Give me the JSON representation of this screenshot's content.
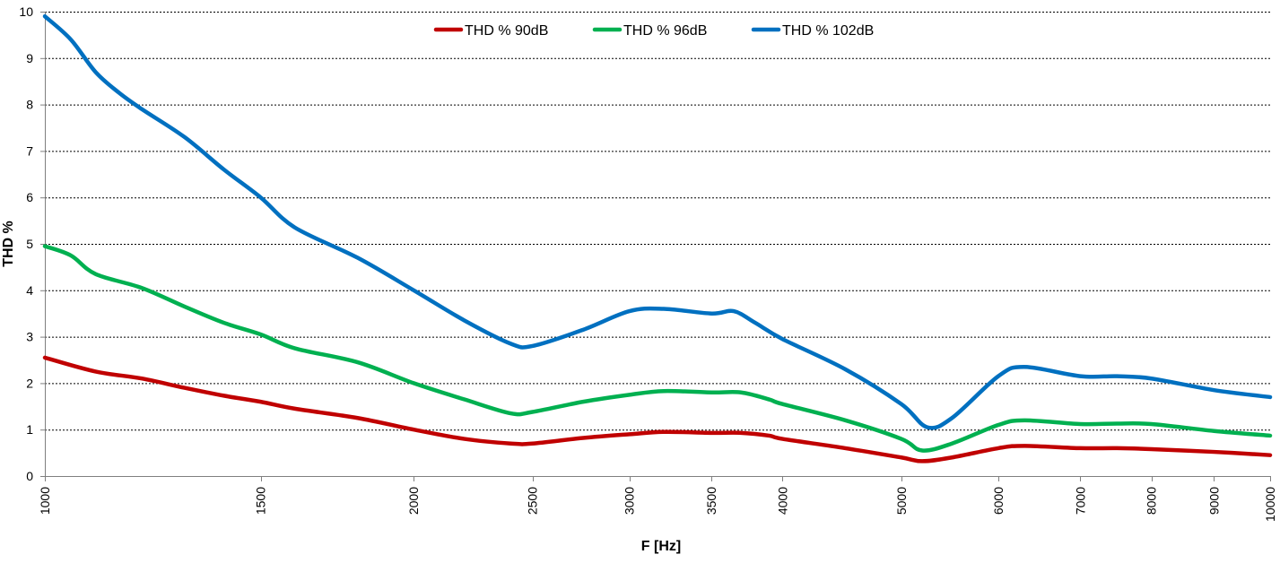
{
  "chart_data": {
    "type": "line",
    "xlabel": "F [Hz]",
    "ylabel": "THD %",
    "xscale": "log",
    "xlim": [
      1000,
      10000
    ],
    "ylim": [
      0,
      10
    ],
    "grid": "horizontal-dashed",
    "legend_position": "top-center",
    "x_ticks": [
      "1000",
      "1500",
      "2000",
      "2500",
      "3000",
      "3500",
      "4000",
      "5000",
      "6000",
      "7000",
      "8000",
      "9000",
      "10000"
    ],
    "y_ticks": [
      "0",
      "1",
      "2",
      "3",
      "4",
      "5",
      "6",
      "7",
      "8",
      "9",
      "10"
    ],
    "series": [
      {
        "name": "THD % 90dB",
        "color": "#c00000",
        "x": [
          1000,
          1100,
          1200,
          1300,
          1400,
          1500,
          1600,
          1800,
          2000,
          2200,
          2400,
          2500,
          2750,
          3000,
          3200,
          3500,
          3700,
          3900,
          4000,
          4500,
          5000,
          5200,
          5500,
          6000,
          6300,
          7000,
          7500,
          8000,
          9000,
          10000
        ],
        "y": [
          2.55,
          2.25,
          2.1,
          1.9,
          1.73,
          1.6,
          1.45,
          1.25,
          1.0,
          0.8,
          0.7,
          0.7,
          0.82,
          0.9,
          0.95,
          0.93,
          0.93,
          0.87,
          0.8,
          0.6,
          0.4,
          0.32,
          0.4,
          0.6,
          0.65,
          0.6,
          0.6,
          0.58,
          0.52,
          0.45
        ]
      },
      {
        "name": "THD % 96dB",
        "color": "#00b050",
        "x": [
          1000,
          1050,
          1100,
          1200,
          1300,
          1400,
          1500,
          1600,
          1800,
          2000,
          2200,
          2400,
          2500,
          2750,
          3000,
          3200,
          3500,
          3700,
          3900,
          4000,
          4500,
          5000,
          5200,
          5500,
          6000,
          6300,
          7000,
          7500,
          8000,
          9000,
          10000
        ],
        "y": [
          4.95,
          4.75,
          4.35,
          4.05,
          3.65,
          3.3,
          3.05,
          2.75,
          2.45,
          2.0,
          1.65,
          1.35,
          1.38,
          1.6,
          1.75,
          1.83,
          1.8,
          1.8,
          1.65,
          1.55,
          1.2,
          0.8,
          0.55,
          0.7,
          1.1,
          1.2,
          1.12,
          1.13,
          1.12,
          0.97,
          0.87
        ]
      },
      {
        "name": "THD % 102dB",
        "color": "#0070c0",
        "x": [
          1000,
          1050,
          1100,
          1150,
          1200,
          1300,
          1400,
          1500,
          1600,
          1800,
          2000,
          2200,
          2400,
          2500,
          2750,
          3000,
          3200,
          3500,
          3650,
          3800,
          4000,
          4500,
          5000,
          5250,
          5500,
          6000,
          6300,
          7000,
          7500,
          8000,
          9000,
          10000
        ],
        "y": [
          9.9,
          9.4,
          8.7,
          8.25,
          7.9,
          7.3,
          6.6,
          6.0,
          5.35,
          4.7,
          4.0,
          3.35,
          2.85,
          2.8,
          3.15,
          3.55,
          3.6,
          3.5,
          3.55,
          3.3,
          2.95,
          2.3,
          1.55,
          1.05,
          1.25,
          2.15,
          2.35,
          2.15,
          2.15,
          2.1,
          1.85,
          1.7
        ]
      }
    ]
  }
}
